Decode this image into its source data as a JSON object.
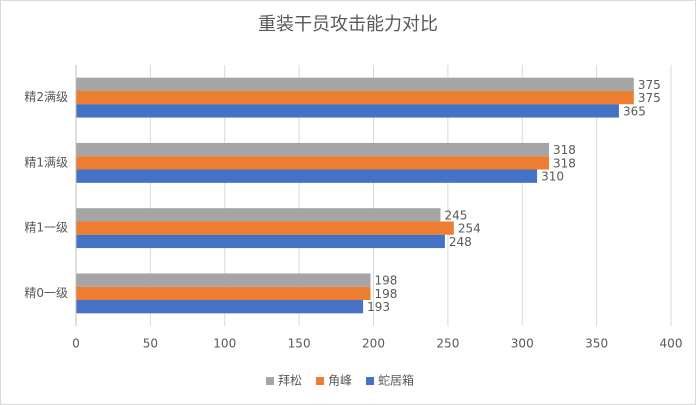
{
  "chart_data": {
    "type": "bar",
    "orientation": "horizontal",
    "title": "重装干员攻击能力对比",
    "categories": [
      "精2满级",
      "精1满级",
      "精1一级",
      "精0一级"
    ],
    "series": [
      {
        "name": "拜松",
        "color": "#a5a5a5",
        "values": [
          375,
          318,
          245,
          198
        ]
      },
      {
        "name": "角峰",
        "color": "#ed7d31",
        "values": [
          375,
          318,
          254,
          198
        ]
      },
      {
        "name": "蛇居箱",
        "color": "#4472c4",
        "values": [
          365,
          310,
          248,
          193
        ]
      }
    ],
    "xlim": [
      0,
      400
    ],
    "xticks": [
      0,
      50,
      100,
      150,
      200,
      250,
      300,
      350,
      400
    ],
    "grid": true,
    "legend": "bottom"
  }
}
